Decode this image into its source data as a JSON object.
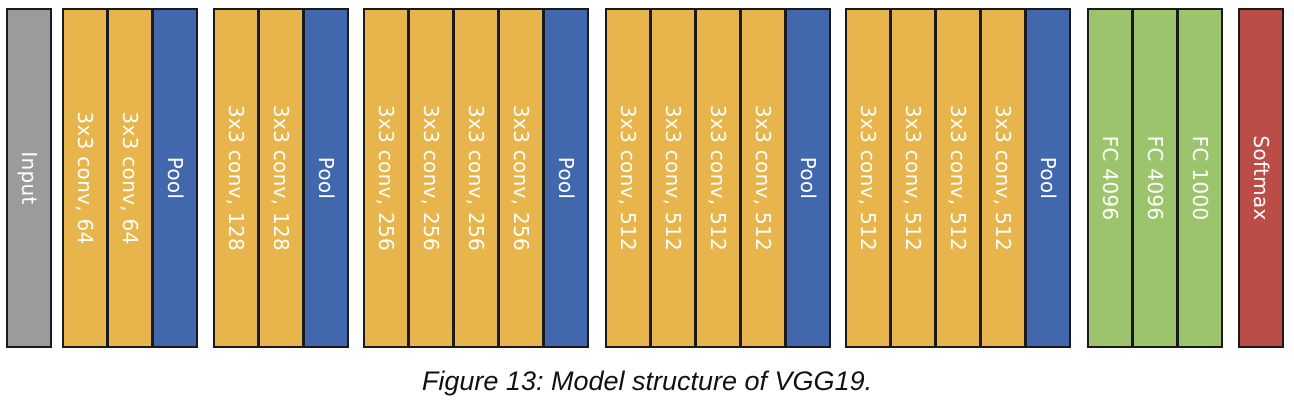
{
  "colors": {
    "input": "#9b9b9b",
    "conv": "#e7b54b",
    "pool": "#4167ad",
    "fc": "#9cc46c",
    "softmax": "#bc4d46"
  },
  "stages": [
    {
      "name": "input",
      "layers": [
        {
          "kind": "input",
          "label": "Input"
        }
      ]
    },
    {
      "name": "block-1",
      "layers": [
        {
          "kind": "conv",
          "label": "3x3 conv, 64"
        },
        {
          "kind": "conv",
          "label": "3x3 conv, 64"
        },
        {
          "kind": "pool",
          "label": "Pool"
        }
      ]
    },
    {
      "name": "block-2",
      "layers": [
        {
          "kind": "conv",
          "label": "3x3 conv, 128"
        },
        {
          "kind": "conv",
          "label": "3x3 conv, 128"
        },
        {
          "kind": "pool",
          "label": "Pool"
        }
      ]
    },
    {
      "name": "block-3",
      "layers": [
        {
          "kind": "conv",
          "label": "3x3 conv, 256"
        },
        {
          "kind": "conv",
          "label": "3x3 conv, 256"
        },
        {
          "kind": "conv",
          "label": "3x3 conv, 256"
        },
        {
          "kind": "conv",
          "label": "3x3 conv, 256"
        },
        {
          "kind": "pool",
          "label": "Pool"
        }
      ]
    },
    {
      "name": "block-4",
      "layers": [
        {
          "kind": "conv",
          "label": "3x3 conv, 512"
        },
        {
          "kind": "conv",
          "label": "3x3 conv, 512"
        },
        {
          "kind": "conv",
          "label": "3x3 conv, 512"
        },
        {
          "kind": "conv",
          "label": "3x3 conv, 512"
        },
        {
          "kind": "pool",
          "label": "Pool"
        }
      ]
    },
    {
      "name": "block-5",
      "layers": [
        {
          "kind": "conv",
          "label": "3x3 conv, 512"
        },
        {
          "kind": "conv",
          "label": "3x3 conv, 512"
        },
        {
          "kind": "conv",
          "label": "3x3 conv, 512"
        },
        {
          "kind": "conv",
          "label": "3x3 conv, 512"
        },
        {
          "kind": "pool",
          "label": "Pool"
        }
      ]
    },
    {
      "name": "classifier",
      "layers": [
        {
          "kind": "fc",
          "label": "FC 4096"
        },
        {
          "kind": "fc",
          "label": "FC 4096"
        },
        {
          "kind": "fc",
          "label": "FC 1000"
        }
      ]
    },
    {
      "name": "output",
      "layers": [
        {
          "kind": "softmax",
          "label": "Softmax"
        }
      ]
    }
  ],
  "caption": "Figure 13: Model structure of VGG19."
}
